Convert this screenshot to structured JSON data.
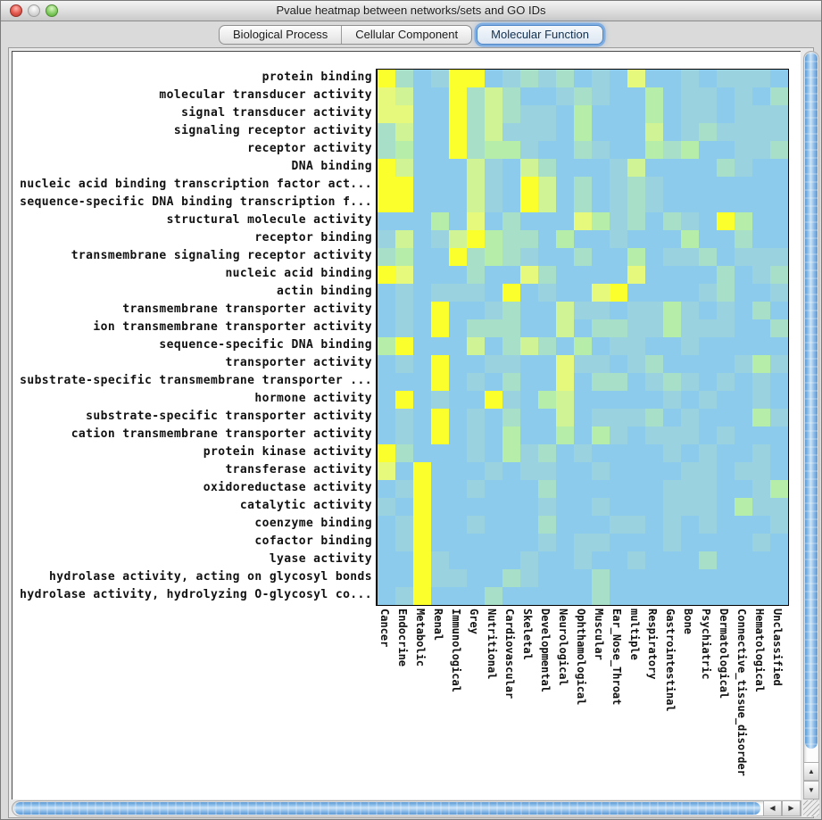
{
  "window": {
    "title": "Pvalue heatmap between networks/sets and GO IDs"
  },
  "tabs": [
    {
      "label": "Biological Process",
      "selected": false
    },
    {
      "label": "Cellular Component",
      "selected": false
    },
    {
      "label": "Molecular Function",
      "selected": true
    }
  ],
  "icons": {
    "scroll_up": "▲",
    "scroll_down": "▼",
    "scroll_left": "◀",
    "scroll_right": "▶"
  },
  "chart_data": {
    "type": "heatmap",
    "title": "Pvalue heatmap between networks/sets and GO IDs",
    "rows": [
      "protein binding",
      "molecular transducer activity",
      "signal transducer activity",
      "signaling receptor activity",
      "receptor activity",
      "DNA binding",
      "nucleic acid binding transcription factor act...",
      "sequence-specific DNA binding transcription f...",
      "structural molecule activity",
      "receptor binding",
      "transmembrane signaling receptor activity",
      "nucleic acid binding",
      "actin binding",
      "transmembrane transporter activity",
      "ion transmembrane transporter activity",
      "sequence-specific DNA binding",
      "transporter activity",
      "substrate-specific transmembrane transporter ...",
      "hormone activity",
      "substrate-specific transporter activity",
      "cation transmembrane transporter activity",
      "protein kinase activity",
      "transferase activity",
      "oxidoreductase activity",
      "catalytic activity",
      "coenzyme binding",
      "cofactor binding",
      "lyase activity",
      "hydrolase activity, acting on glycosyl bonds",
      "hydrolase activity, hydrolyzing O-glycosyl co..."
    ],
    "columns": [
      "Cancer",
      "Endocrine",
      "Metabolic",
      "Renal",
      "Immunological",
      "Grey",
      "Nutritional",
      "Cardiovascular",
      "Skeletal",
      "Developmental",
      "Neurological",
      "Ophthamological",
      "Muscular",
      "Ear_Nose_Throat",
      "multiple",
      "Respiratory",
      "Gastrointestinal",
      "Bone",
      "Psychiatric",
      "Dermatological",
      "Connective_tissue_disorder",
      "Hematological",
      "Unclassified"
    ],
    "palette": [
      "#8DCBEC",
      "#9AD3DF",
      "#A8DFC8",
      "#B6EDA9",
      "#CFF395",
      "#E7F97D",
      "#FBFF2B"
    ],
    "value_encoding": "each cell digit indexes palette: 0 = blue (low) through 6 = yellow (high)",
    "cells": [
      "62016601212010500101110",
      "54006242001210030110102",
      "55006242110300030110111",
      "24006241110300040121111",
      "23006233100210032300112",
      "64000410420001400002100",
      "66000410640201210000000",
      "66000410640201210000000",
      "00030502000531202106300",
      "14014632203001000300200",
      "23006232100200301120111",
      "65000200520000500002012",
      "01011106010056000012001",
      "01060012004110113101020",
      "01060222004022113111002",
      "36000402420301100100000",
      "01060011005110120000131",
      "00060102005022012101010",
      "06010061034000001010010",
      "01060102004011120100031",
      "01060103003031011101000",
      "62000103120100001010010",
      "50600010110010000110110",
      "01600100020000001110013",
      "10600000010010001110311",
      "01600100020001101010001",
      "01600000010110001000010",
      "00610000100100100020000",
      "00611002100020000000000",
      "01600020000020000000000"
    ]
  }
}
